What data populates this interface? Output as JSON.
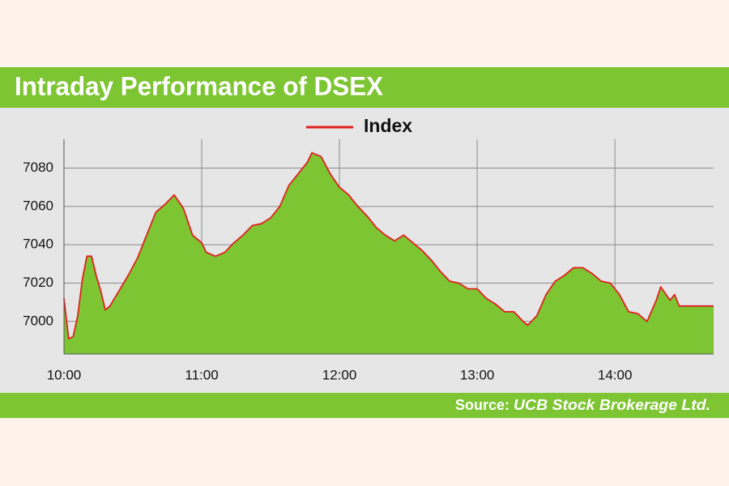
{
  "chart_data": {
    "type": "area",
    "title": "Intraday Performance of DSEX",
    "x": [
      "10:00",
      "10:02",
      "10:04",
      "10:06",
      "10:08",
      "10:10",
      "10:12",
      "10:14",
      "10:16",
      "10:18",
      "10:20",
      "10:24",
      "10:28",
      "10:32",
      "10:36",
      "10:40",
      "10:44",
      "10:48",
      "10:52",
      "10:56",
      "11:00",
      "11:02",
      "11:06",
      "11:10",
      "11:14",
      "11:18",
      "11:22",
      "11:26",
      "11:30",
      "11:34",
      "11:38",
      "11:42",
      "11:46",
      "11:48",
      "11:52",
      "11:56",
      "12:00",
      "12:04",
      "12:08",
      "12:12",
      "12:16",
      "12:20",
      "12:24",
      "12:28",
      "12:32",
      "12:36",
      "12:40",
      "12:44",
      "12:48",
      "12:52",
      "12:56",
      "13:00",
      "13:04",
      "13:08",
      "13:12",
      "13:16",
      "13:20",
      "13:22",
      "13:26",
      "13:30",
      "13:34",
      "13:38",
      "13:42",
      "13:46",
      "13:50",
      "13:54",
      "13:58",
      "14:02",
      "14:06",
      "14:10",
      "14:14",
      "14:18",
      "14:20",
      "14:24",
      "14:26",
      "14:28",
      "14:30",
      "14:43"
    ],
    "series": [
      {
        "name": "Index",
        "color": "#e0201e",
        "fill": "#7dc532",
        "values": [
          7012,
          6991,
          6992,
          7003,
          7022,
          7034,
          7034,
          7024,
          7016,
          7006,
          7008,
          7016,
          7024,
          7033,
          7045,
          7057,
          7061,
          7066,
          7059,
          7045,
          7041,
          7036,
          7034,
          7036,
          7041,
          7045,
          7050,
          7051,
          7054,
          7060,
          7071,
          7077,
          7083,
          7088,
          7086,
          7077,
          7070,
          7066,
          7060,
          7055,
          7049,
          7045,
          7042,
          7045,
          7041,
          7037,
          7032,
          7026,
          7021,
          7020,
          7017,
          7017,
          7012,
          7009,
          7005,
          7005,
          7000,
          6998,
          7003,
          7014,
          7021,
          7024,
          7028,
          7028,
          7025,
          7021,
          7020,
          7014,
          7005,
          7004,
          7000,
          7011,
          7018,
          7011,
          7014,
          7008,
          7008,
          7008
        ]
      }
    ],
    "xlim": [
      "10:00",
      "14:43"
    ],
    "xticks": [
      "10:00",
      "11:00",
      "12:00",
      "13:00",
      "14:00"
    ],
    "ylim": [
      6983,
      7095
    ],
    "yticks": [
      7000,
      7020,
      7040,
      7060,
      7080
    ],
    "grid": true,
    "source_label": "Source:",
    "source": "UCB Stock Brokerage Ltd."
  }
}
